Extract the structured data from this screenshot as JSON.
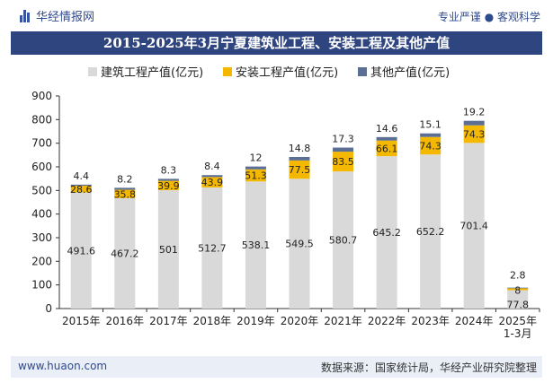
{
  "header": {
    "brand": "华经情报网",
    "tagline": "专业严谨 ● 客观科学"
  },
  "footer": {
    "website": "www.huaon.com",
    "source": "数据来源：国家统计局，华经产业研究院整理"
  },
  "chart_data": {
    "type": "bar",
    "stacked": true,
    "title": "2015-2025年3月宁夏建筑业工程、安装工程及其他产值",
    "categories": [
      "2015年",
      "2016年",
      "2017年",
      "2018年",
      "2019年",
      "2020年",
      "2021年",
      "2022年",
      "2023年",
      "2024年",
      "2025年\n1-3月"
    ],
    "series": [
      {
        "name": "建筑工程产值(亿元)",
        "color": "#d9d9d9",
        "label_color": "#222222",
        "values": [
          491.6,
          467.2,
          501,
          512.7,
          538.1,
          549.5,
          580.7,
          645.2,
          652.2,
          701.4,
          77.8
        ]
      },
      {
        "name": "安装工程产值(亿元)",
        "color": "#f5b800",
        "label_color": "#222222",
        "values": [
          28.6,
          35.8,
          39.9,
          43.9,
          51.3,
          77.5,
          83.5,
          66.1,
          74.3,
          74.3,
          8
        ]
      },
      {
        "name": "其他产值(亿元)",
        "color": "#5b6f95",
        "label_color": "#222222",
        "values": [
          4.4,
          8.2,
          8.3,
          8.4,
          12,
          14.8,
          17.3,
          14.6,
          15.1,
          19.2,
          2.8
        ]
      }
    ],
    "ylim": [
      0,
      900
    ],
    "yticks": [
      0,
      100,
      200,
      300,
      400,
      500,
      600,
      700,
      800,
      900
    ],
    "legend_position": "top",
    "grid": false
  }
}
